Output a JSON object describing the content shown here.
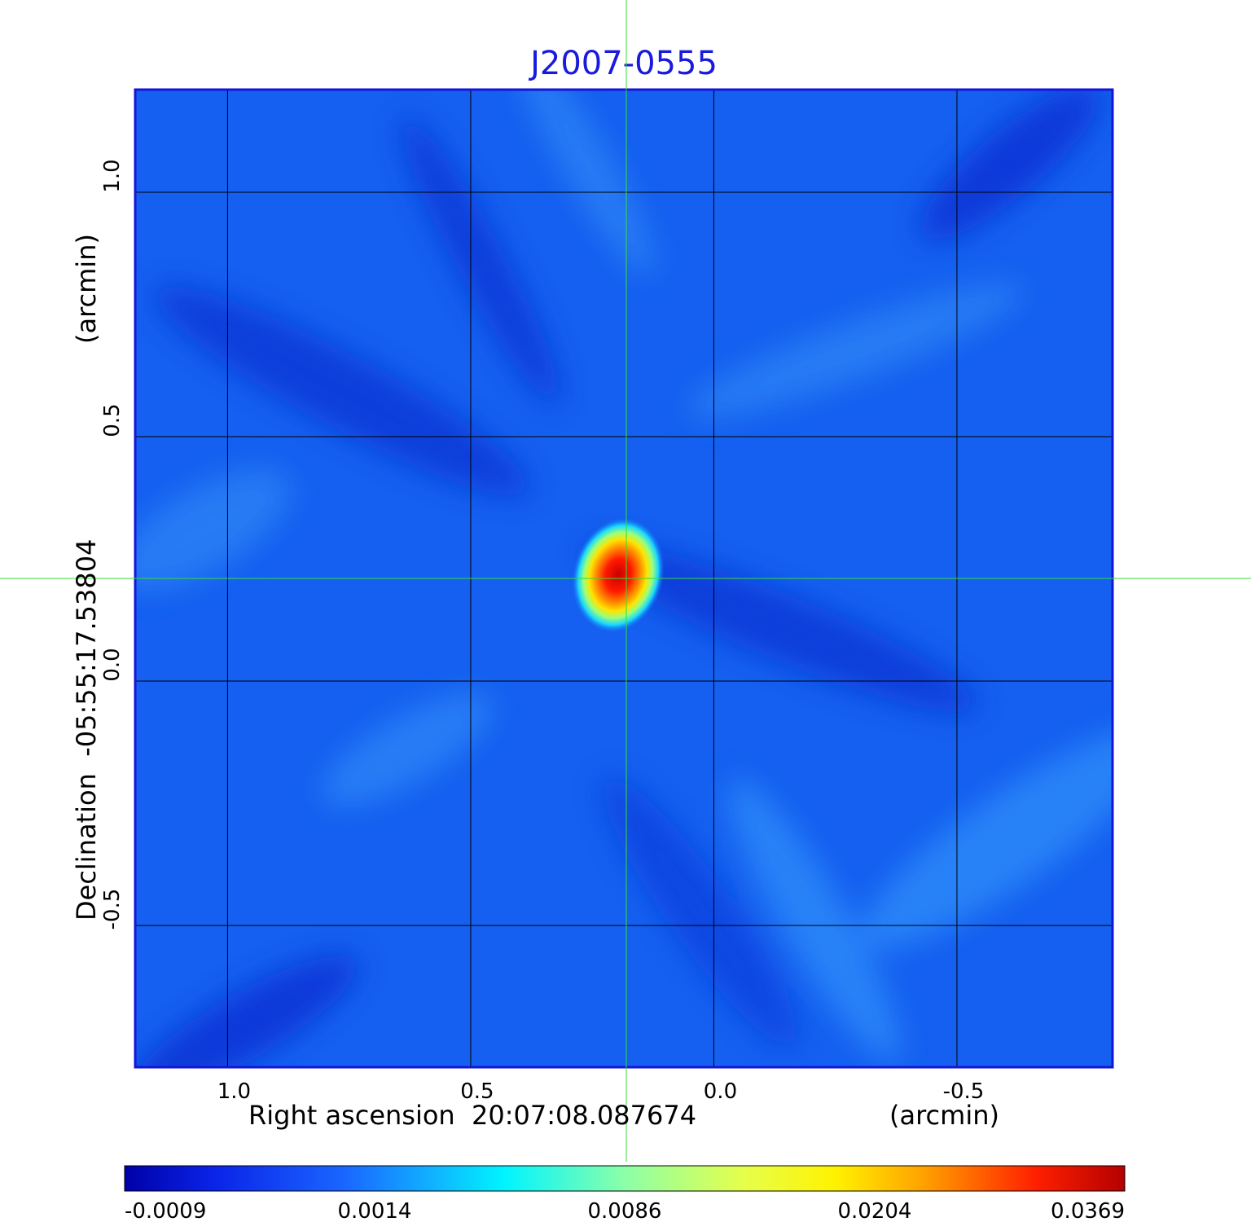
{
  "chart_data": {
    "type": "heatmap",
    "title": "J2007-0555",
    "xlabel": "Right ascension  20:07:08.087674",
    "xunit": "(arcmin)",
    "ylabel": "Declination  -05:55:17.53804",
    "yunit": "(arcmin)",
    "xlim": [
      1.19,
      -0.82
    ],
    "ylim": [
      -0.79,
      1.21
    ],
    "x_ticks": [
      {
        "value": 1.0,
        "label": "1.0"
      },
      {
        "value": 0.5,
        "label": "0.5"
      },
      {
        "value": 0.0,
        "label": "0.0"
      },
      {
        "value": -0.5,
        "label": "-0.5"
      }
    ],
    "y_ticks": [
      {
        "value": 1.0,
        "label": "1.0"
      },
      {
        "value": 0.5,
        "label": "0.5"
      },
      {
        "value": 0.0,
        "label": "0.0"
      },
      {
        "value": -0.5,
        "label": "-0.5"
      }
    ],
    "grid": true,
    "crosshair": {
      "x": 0.18,
      "y": 0.21
    },
    "source_peak": {
      "x": 0.18,
      "y": 0.21,
      "value": 0.0369
    },
    "colorbar": {
      "colormap": "jet",
      "ticks": [
        "-0.0009",
        "0.0014",
        "0.0086",
        "0.0204",
        "0.0369"
      ],
      "min": -0.0009,
      "max": 0.0369
    }
  },
  "colors": {
    "title": "#1a1adf",
    "frame": "#1515d8",
    "grid": "#000000",
    "crosshair": "#33dd33",
    "background_field": "#1560f0"
  }
}
